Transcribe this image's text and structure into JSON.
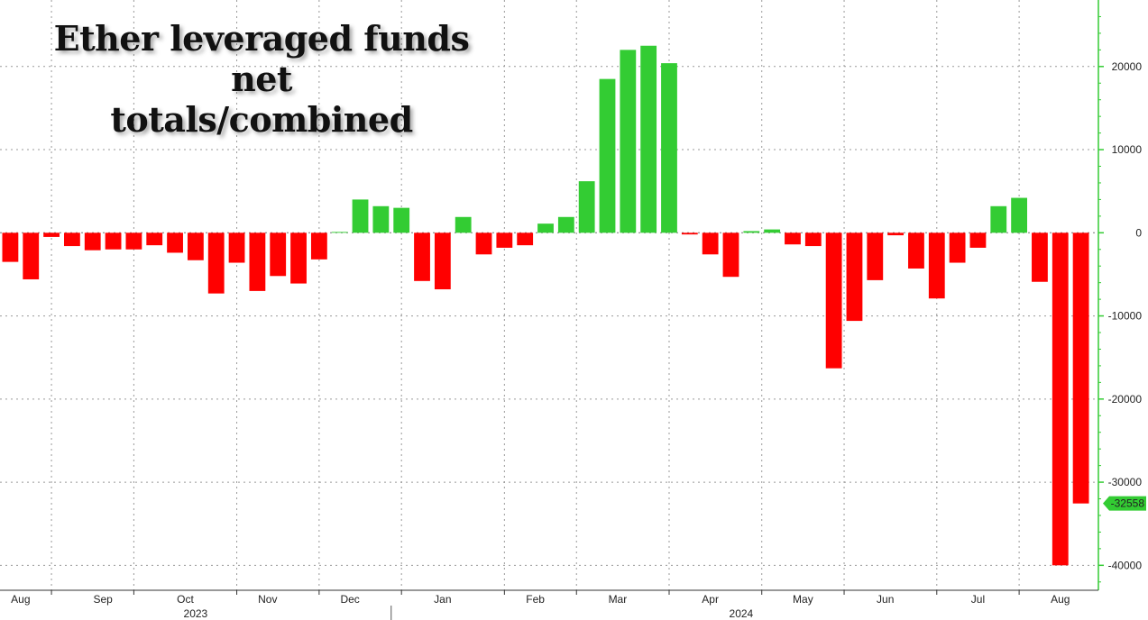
{
  "chart_data": {
    "type": "bar",
    "title_lines": [
      "Ether leveraged funds net",
      "totals/combined"
    ],
    "xlabel": "",
    "ylabel": "",
    "ylim": [
      -43000,
      28000
    ],
    "yticks": [
      20000,
      10000,
      0,
      -10000,
      -20000,
      -30000,
      -40000
    ],
    "ytick_labels": [
      "20000",
      "10000",
      "0",
      "-10000",
      "-20000",
      "-30000",
      "-40000"
    ],
    "grid": true,
    "axis_side": "right",
    "positive_color": "#33cc33",
    "negative_color": "#ff0000",
    "axis_color": "#33cc33",
    "last_value": -32558,
    "last_value_label": "-32558",
    "x_month_labels": [
      {
        "label": "Aug",
        "index": 1
      },
      {
        "label": "Sep",
        "index": 5
      },
      {
        "label": "Oct",
        "index": 9
      },
      {
        "label": "Nov",
        "index": 13
      },
      {
        "label": "Dec",
        "index": 17
      },
      {
        "label": "Jan",
        "index": 21.5
      },
      {
        "label": "Feb",
        "index": 26
      },
      {
        "label": "Mar",
        "index": 30
      },
      {
        "label": "Apr",
        "index": 34.5
      },
      {
        "label": "May",
        "index": 39
      },
      {
        "label": "Jun",
        "index": 43
      },
      {
        "label": "Jul",
        "index": 47.5
      },
      {
        "label": "Aug",
        "index": 51.5
      }
    ],
    "x_year_labels": [
      {
        "label": "2023",
        "index": 9.5
      },
      {
        "label": "2024",
        "index": 36
      }
    ],
    "year_divider_index": 19,
    "values": [
      -3500,
      -5600,
      -500,
      -1600,
      -2100,
      -2000,
      -2000,
      -1500,
      -2400,
      -3300,
      -7300,
      -3600,
      -7000,
      -5200,
      -6100,
      -3200,
      100,
      4000,
      3200,
      3000,
      -5800,
      -6800,
      1900,
      -2600,
      -1800,
      -1500,
      1100,
      1900,
      6200,
      18500,
      22000,
      22500,
      20400,
      -200,
      -2600,
      -5300,
      200,
      400,
      -1400,
      -1600,
      -16300,
      -10600,
      -5700,
      -300,
      -4300,
      -7900,
      -3600,
      -1800,
      3200,
      4200,
      -5900,
      -40000,
      -32558
    ]
  }
}
